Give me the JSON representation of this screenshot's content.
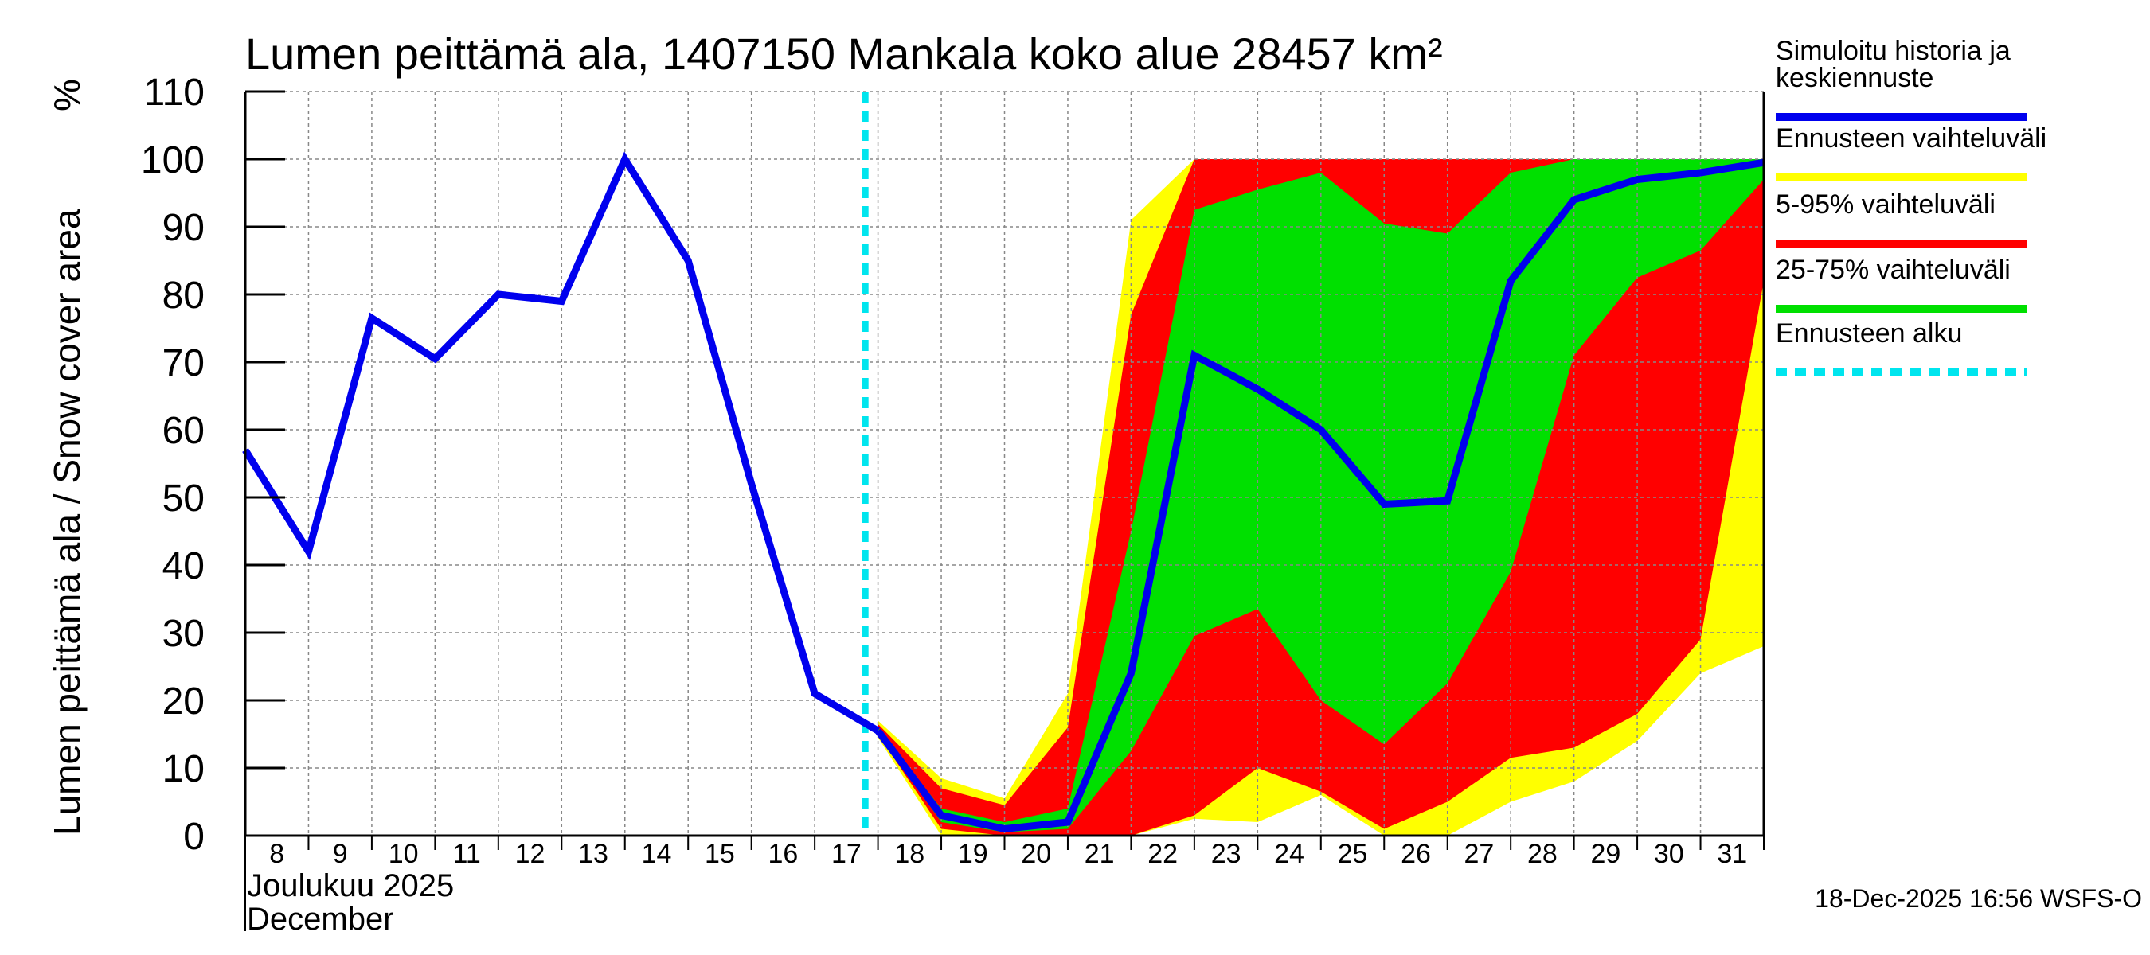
{
  "chart_data": {
    "type": "area",
    "title": "Lumen peittämä ala, 1407150 Mankala koko alue 28457 km²",
    "ylabel": "Lumen peittämä ala / Snow cover area",
    "yunit": "%",
    "ylim": [
      0,
      110
    ],
    "yticks": [
      0,
      10,
      20,
      30,
      40,
      50,
      60,
      70,
      80,
      90,
      100,
      110
    ],
    "xlim": [
      8,
      32
    ],
    "x_ticks": [
      8,
      9,
      10,
      11,
      12,
      13,
      14,
      15,
      16,
      17,
      18,
      19,
      20,
      21,
      22,
      23,
      24,
      25,
      26,
      27,
      28,
      29,
      30,
      31
    ],
    "x_month_fi": "Joulukuu  2025",
    "x_month_en": "December",
    "grid": true,
    "forecast_start": 17.8,
    "history": {
      "name": "Simuloitu historia ja keskiennuste",
      "color": "#0000ee",
      "x": [
        8,
        9,
        10,
        11,
        12,
        13,
        14,
        15,
        16,
        17,
        18
      ],
      "y": [
        57,
        42,
        76.5,
        70.5,
        80,
        79,
        100,
        85,
        52,
        21,
        15.5
      ]
    },
    "mean_forecast": {
      "x": [
        18,
        19,
        20,
        21,
        22,
        23,
        24,
        25,
        26,
        27,
        28,
        29,
        30,
        31,
        32
      ],
      "y": [
        15.5,
        3,
        1,
        2,
        24,
        71,
        66,
        60,
        49,
        49.5,
        82,
        94,
        97,
        98,
        99.5
      ]
    },
    "bands": [
      {
        "name": "Ennusteen vaihteluväli",
        "color": "#ffff00",
        "x": [
          18,
          19,
          20,
          21,
          22,
          23,
          24,
          25,
          26,
          27,
          28,
          29,
          30,
          31,
          32
        ],
        "upper": [
          17,
          8.5,
          5.5,
          21,
          91,
          100,
          100,
          100,
          100,
          100,
          100,
          100,
          100,
          100,
          100
        ],
        "lower": [
          14.5,
          0,
          0,
          0,
          0,
          2.5,
          2,
          6,
          0,
          0,
          5,
          8,
          14,
          24,
          28
        ]
      },
      {
        "name": "5-95% vaihteluväli",
        "color": "#ff0000",
        "x": [
          18,
          19,
          20,
          21,
          22,
          23,
          24,
          25,
          26,
          27,
          28,
          29,
          30,
          31,
          32
        ],
        "upper": [
          16.5,
          7,
          4.5,
          16,
          77,
          100,
          100,
          100,
          100,
          100,
          100,
          100,
          100,
          100,
          100
        ],
        "lower": [
          15,
          1,
          0,
          0,
          0,
          3,
          10,
          6.5,
          1,
          5,
          11.5,
          13,
          18,
          29,
          82
        ]
      },
      {
        "name": "25-75% vaihteluväli",
        "color": "#00e000",
        "x": [
          18,
          19,
          20,
          21,
          22,
          23,
          24,
          25,
          26,
          27,
          28,
          29,
          30,
          31,
          32
        ],
        "upper": [
          16,
          4,
          2,
          4,
          45,
          92.5,
          95.5,
          98,
          90.5,
          89,
          98,
          100,
          100,
          100,
          100
        ],
        "lower": [
          15.2,
          2,
          0.5,
          1,
          12.5,
          29.5,
          33.5,
          20,
          13.5,
          22.5,
          39,
          71,
          82.5,
          86.5,
          97
        ]
      }
    ],
    "legend": [
      {
        "label_lines": [
          "Simuloitu historia ja",
          "keskiennuste"
        ],
        "color": "#0000ee",
        "style": "solid"
      },
      {
        "label_lines": [
          "Ennusteen vaihteluväli"
        ],
        "color": "#ffff00",
        "style": "solid"
      },
      {
        "label_lines": [
          "5-95% vaihteluväli"
        ],
        "color": "#ff0000",
        "style": "solid"
      },
      {
        "label_lines": [
          "25-75% vaihteluväli"
        ],
        "color": "#00e000",
        "style": "solid"
      },
      {
        "label_lines": [
          "Ennusteen alku"
        ],
        "color": "#00e5ee",
        "style": "dashed"
      }
    ],
    "footer": "18-Dec-2025 16:56 WSFS-O"
  }
}
